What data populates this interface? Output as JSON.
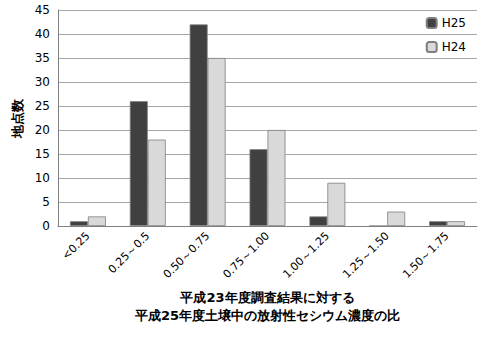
{
  "chart_data": {
    "type": "bar",
    "x_label": "平成23年度調査結果に対する\n平成25年度土壌中の放射性セシウム濃度の比",
    "y_label": "地点数",
    "categories": [
      "<0.25",
      "0.25～0.5",
      "0.50～0.75",
      "0.75～1.00",
      "1.00～1.25",
      "1.25～1.50",
      "1.50～1.75"
    ],
    "series": [
      {
        "name": "H25",
        "color": "#404040",
        "values": [
          1,
          26,
          42,
          16,
          2,
          0,
          1
        ]
      },
      {
        "name": "H24",
        "color": "#d9d9d9",
        "values": [
          2,
          18,
          35,
          20,
          9,
          3,
          1
        ]
      }
    ],
    "ylim": [
      0,
      45
    ],
    "yticks": [
      0,
      5,
      10,
      15,
      20,
      25,
      30,
      35,
      40,
      45
    ],
    "grid": true,
    "legend": "upper right"
  }
}
